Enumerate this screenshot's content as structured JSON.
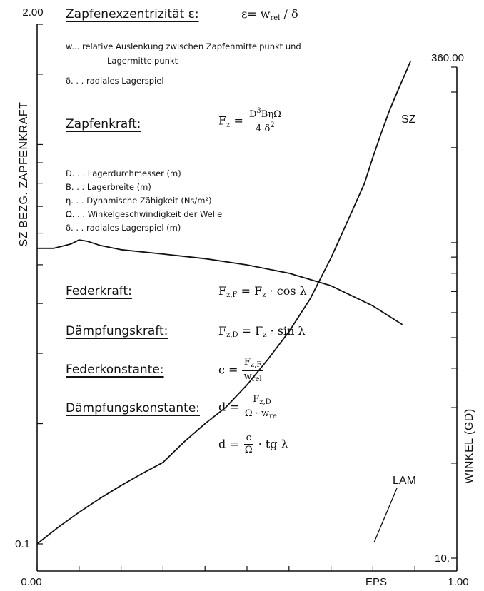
{
  "chart_data": {
    "type": "line",
    "xlabel": "EPS",
    "ylabel_left": "SZ BEZG. ZAPFENKRAFT",
    "ylabel_right": "WINKEL (GD)",
    "xlim": [
      0.0,
      1.0
    ],
    "ylim_left": [
      0.1,
      2.0
    ],
    "ylim_right": [
      10.0,
      360.0
    ],
    "x_tick_labels": [
      "0.00",
      "EPS",
      "1.00"
    ],
    "y_left_tick_labels": [
      "2.00",
      "0.1"
    ],
    "y_right_tick_labels": [
      "360.00",
      "10."
    ],
    "grid": false,
    "series": [
      {
        "name": "SZ",
        "axis": "left",
        "x": [
          0.0,
          0.05,
          0.1,
          0.15,
          0.2,
          0.25,
          0.3,
          0.35,
          0.4,
          0.45,
          0.5,
          0.55,
          0.6,
          0.65,
          0.7,
          0.75,
          0.78,
          0.8,
          0.82,
          0.84,
          0.86,
          0.88,
          0.89
        ],
        "y": [
          0.1,
          0.11,
          0.12,
          0.13,
          0.14,
          0.15,
          0.16,
          0.18,
          0.2,
          0.22,
          0.25,
          0.29,
          0.34,
          0.41,
          0.52,
          0.68,
          0.8,
          0.93,
          1.07,
          1.22,
          1.37,
          1.53,
          1.62
        ]
      },
      {
        "name": "LAM",
        "axis": "right",
        "x": [
          0.0,
          0.04,
          0.08,
          0.1,
          0.12,
          0.15,
          0.2,
          0.3,
          0.4,
          0.5,
          0.6,
          0.7,
          0.8,
          0.87
        ],
        "y": [
          96,
          96,
          99,
          102,
          101,
          98,
          95,
          92,
          89,
          85,
          80,
          73,
          63,
          55
        ]
      }
    ]
  },
  "annotations": {
    "ecc_title": "Zapfenexzentrizität ε:",
    "ecc_formula": "ε= w",
    "ecc_formula_sub": "rel",
    "ecc_formula_tail": " / δ",
    "w_def_line1": "w...  relative Auslenkung zwischen Zapfenmittelpunkt und",
    "w_def_line2": "Lagermittelpunkt",
    "delta_def": "δ. . . radiales Lagerspiel",
    "force_title": "Zapfenkraft:",
    "force_lhs": "F",
    "force_lhs_sub": "z",
    "force_num_a": "D",
    "force_num_sup": "3",
    "force_num_b": "BηΩ",
    "force_den_a": "4  δ",
    "force_den_sup": "2",
    "var_D": "D. . .  Lagerdurchmesser  (m)",
    "var_B": "B. . .  Lagerbreite             (m)",
    "var_eta": "η. . .  Dynamische Zähigkeit  (Ns/m²)",
    "var_omega": "Ω. . .  Winkelgeschwindigkeit  der Welle",
    "var_delta": "δ. . .  radiales Lagerspiel    (m)",
    "spring_title": "Federkraft:",
    "spring_formula_a": "F",
    "spring_formula_sub": "z,F",
    "spring_formula_b": " = F",
    "spring_formula_sub2": "z",
    "spring_formula_c": " · cos λ",
    "damp_title": "Dämpfungskraft:",
    "damp_formula_a": "F",
    "damp_formula_sub": "z,D",
    "damp_formula_b": " = F",
    "damp_formula_sub2": "z",
    "damp_formula_c": " · sin λ",
    "springc_title": "Federkonstante:",
    "springc_lhs": "c =",
    "springc_num": "F",
    "springc_num_sub": "z,F",
    "springc_den": "w",
    "springc_den_sub": "rel",
    "dampc_title": "Dämpfungskonstante:",
    "dampc_lhs": "d =",
    "dampc_num": "F",
    "dampc_num_sub": "z,D",
    "dampc_den": "Ω · w",
    "dampc_den_sub": "rel",
    "dampc2_lhs": "d =",
    "dampc2_num": "c",
    "dampc2_den": "Ω",
    "dampc2_tail": " · tg λ"
  }
}
